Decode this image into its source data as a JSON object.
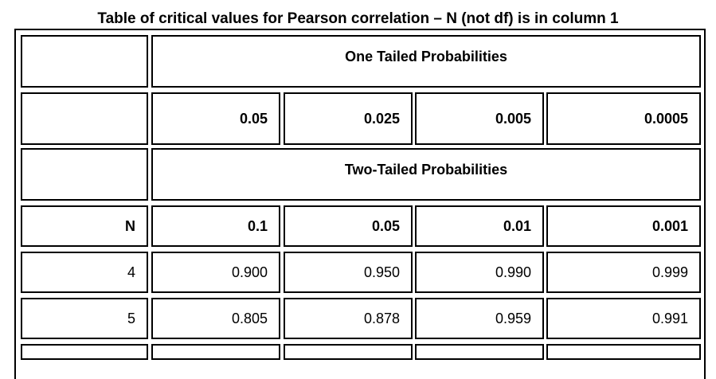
{
  "title": "Table of critical values for Pearson correlation – N (not df) is in column 1",
  "one_tailed_header": "One Tailed Probabilities",
  "two_tailed_header": "Two-Tailed Probabilities",
  "one_tailed_values": [
    "0.05",
    "0.025",
    "0.005",
    "0.0005"
  ],
  "n_label": "N",
  "two_tailed_values": [
    "0.1",
    "0.05",
    "0.01",
    "0.001"
  ],
  "rows": [
    {
      "n": "4",
      "values": [
        "0.900",
        "0.950",
        "0.990",
        "0.999"
      ]
    },
    {
      "n": "5",
      "values": [
        "0.805",
        "0.878",
        "0.959",
        "0.991"
      ]
    }
  ]
}
